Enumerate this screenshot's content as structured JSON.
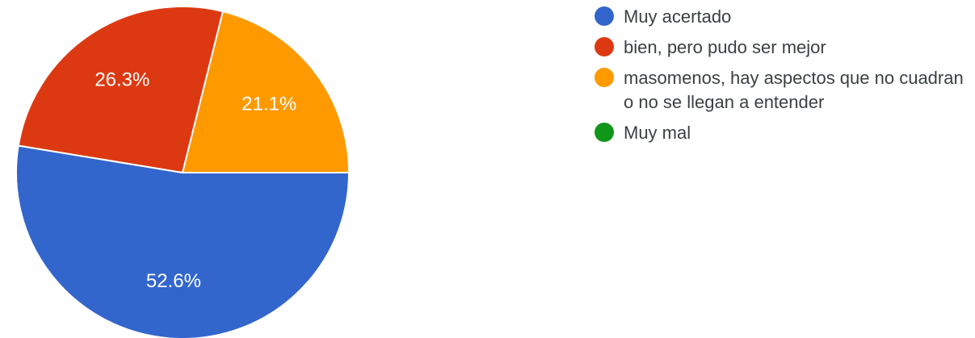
{
  "chart_data": {
    "type": "pie",
    "title": "",
    "legend_position": "right",
    "slices": [
      {
        "label": "Muy acertado",
        "value": 52.6,
        "display": "52.6%",
        "color": "#3366cc"
      },
      {
        "label": "bien, pero pudo ser mejor",
        "value": 26.3,
        "display": "26.3%",
        "color": "#dc3912"
      },
      {
        "label": "masomenos, hay aspectos que no cuadran o no se llegan a entender",
        "value": 21.1,
        "display": "21.1%",
        "color": "#ff9900"
      },
      {
        "label": "Muy mal",
        "value": 0,
        "display": "",
        "color": "#109618"
      }
    ]
  }
}
